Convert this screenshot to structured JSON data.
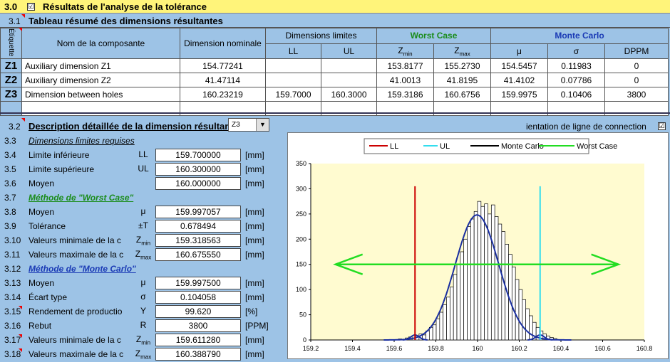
{
  "header": {
    "section_num": "3.0",
    "checkbox": "☑",
    "title": "Résultats de l'analyse de la tolérance"
  },
  "subheader": {
    "section_num": "3.1",
    "title": "Tableau résumé des dimensions résultantes"
  },
  "table": {
    "etiquette": "Étiquette",
    "col_name": "Nom de la composante",
    "col_nominal": "Dimension nominale",
    "col_limits": "Dimensions limites",
    "col_ll": "LL",
    "col_ul": "UL",
    "col_wc": "Worst Case",
    "col_zmin": "Z",
    "col_zmin_sub": "min",
    "col_zmax": "Z",
    "col_zmax_sub": "max",
    "col_mc": "Monte Carlo",
    "col_mu": "μ",
    "col_sigma": "σ",
    "col_dppm": "DPPM",
    "rows": [
      {
        "label": "Z1",
        "name": "Auxiliary dimension Z1",
        "nominal": "154.77241",
        "ll": "",
        "ul": "",
        "zmin": "153.8177",
        "zmax": "155.2730",
        "mu": "154.5457",
        "sigma": "0.11983",
        "dppm": "0"
      },
      {
        "label": "Z2",
        "name": "Auxiliary dimension Z2",
        "nominal": "41.47114",
        "ll": "",
        "ul": "",
        "zmin": "41.0013",
        "zmax": "41.8195",
        "mu": "41.4102",
        "sigma": "0.07786",
        "dppm": "0"
      },
      {
        "label": "Z3",
        "name": "Dimension between holes",
        "nominal": "160.23219",
        "ll": "159.7000",
        "ul": "160.3000",
        "zmin": "159.3186",
        "zmax": "160.6756",
        "mu": "159.9975",
        "sigma": "0.10406",
        "dppm": "3800"
      }
    ]
  },
  "detail": {
    "num": "3.2",
    "title": "Description détaillée de la dimension résultante",
    "dropdown_value": "Z3",
    "orientation_label": "ientation de ligne de connection",
    "orientation_checkbox": "☑",
    "rows": [
      {
        "n": "3.3",
        "label": "Dimensions limites requises",
        "kind": "section"
      },
      {
        "n": "3.4",
        "label": "Limite inférieure",
        "sym": "LL",
        "val": "159.700000",
        "unit": "[mm]"
      },
      {
        "n": "3.5",
        "label": "Limite supérieure",
        "sym": "UL",
        "val": "160.300000",
        "unit": "[mm]"
      },
      {
        "n": "3.6",
        "label": "Moyen",
        "sym": "",
        "val": "160.000000",
        "unit": "[mm]"
      },
      {
        "n": "3.7",
        "label": "Méthode de \"Worst Case\"",
        "kind": "wc"
      },
      {
        "n": "3.8",
        "label": "Moyen",
        "sym": "μ",
        "val": "159.997057",
        "unit": "[mm]"
      },
      {
        "n": "3.9",
        "label": "Tolérance",
        "sym": "±T",
        "val": "0.678494",
        "unit": "[mm]"
      },
      {
        "n": "3.10",
        "label": "Valeurs minimale de la c",
        "sym": "Zmin",
        "val": "159.318563",
        "unit": "[mm]"
      },
      {
        "n": "3.11",
        "label": "Valeurs maximale de la c",
        "sym": "Zmax",
        "val": "160.675550",
        "unit": "[mm]"
      },
      {
        "n": "3.12",
        "label": "Méthode de \"Monte Carlo\"",
        "kind": "mc"
      },
      {
        "n": "3.13",
        "label": "Moyen",
        "sym": "μ",
        "val": "159.997500",
        "unit": "[mm]"
      },
      {
        "n": "3.14",
        "label": "Écart type",
        "sym": "σ",
        "val": "0.104058",
        "unit": "[mm]"
      },
      {
        "n": "3.15",
        "label": "Rendement de productio",
        "sym": "Y",
        "val": "99.620",
        "unit": "[%]"
      },
      {
        "n": "3.16",
        "label": "Rebut",
        "sym": "R",
        "val": "3800",
        "unit": "[PPM]"
      },
      {
        "n": "3.17",
        "label": "Valeurs minimale de la c",
        "sym": "Zmin",
        "val": "159.611280",
        "unit": "[mm]"
      },
      {
        "n": "3.18",
        "label": "Valeurs maximale de la c",
        "sym": "Zmax",
        "val": "160.388790",
        "unit": "[mm]"
      }
    ]
  },
  "chart_data": {
    "type": "bar",
    "legend": [
      "LL",
      "UL",
      "Monte Carlo",
      "Worst Case"
    ],
    "legend_colors": [
      "#cc0000",
      "#33ddee",
      "#000000",
      "#22dd22"
    ],
    "xlim": [
      159.2,
      160.8
    ],
    "ylim": [
      0,
      350
    ],
    "xticks": [
      "159.2",
      "159.4",
      "159.6",
      "159.8",
      "160",
      "160.2",
      "160.4",
      "160.6",
      "160.8"
    ],
    "yticks": [
      "0",
      "50",
      "100",
      "150",
      "200",
      "250",
      "300",
      "350"
    ],
    "ll": 159.7,
    "ul": 160.3,
    "worst_case": {
      "min": 159.3186,
      "max": 160.6756,
      "y": 150
    },
    "mean": 159.9975,
    "sigma": 0.10406,
    "hist_values": [
      2,
      0,
      4,
      6,
      3,
      8,
      12,
      10,
      18,
      25,
      30,
      42,
      55,
      70,
      85,
      105,
      130,
      150,
      175,
      200,
      225,
      240,
      255,
      275,
      265,
      270,
      250,
      268,
      245,
      230,
      215,
      190,
      170,
      145,
      120,
      100,
      80,
      62,
      48,
      35,
      25,
      18,
      12,
      8,
      5,
      3
    ]
  }
}
